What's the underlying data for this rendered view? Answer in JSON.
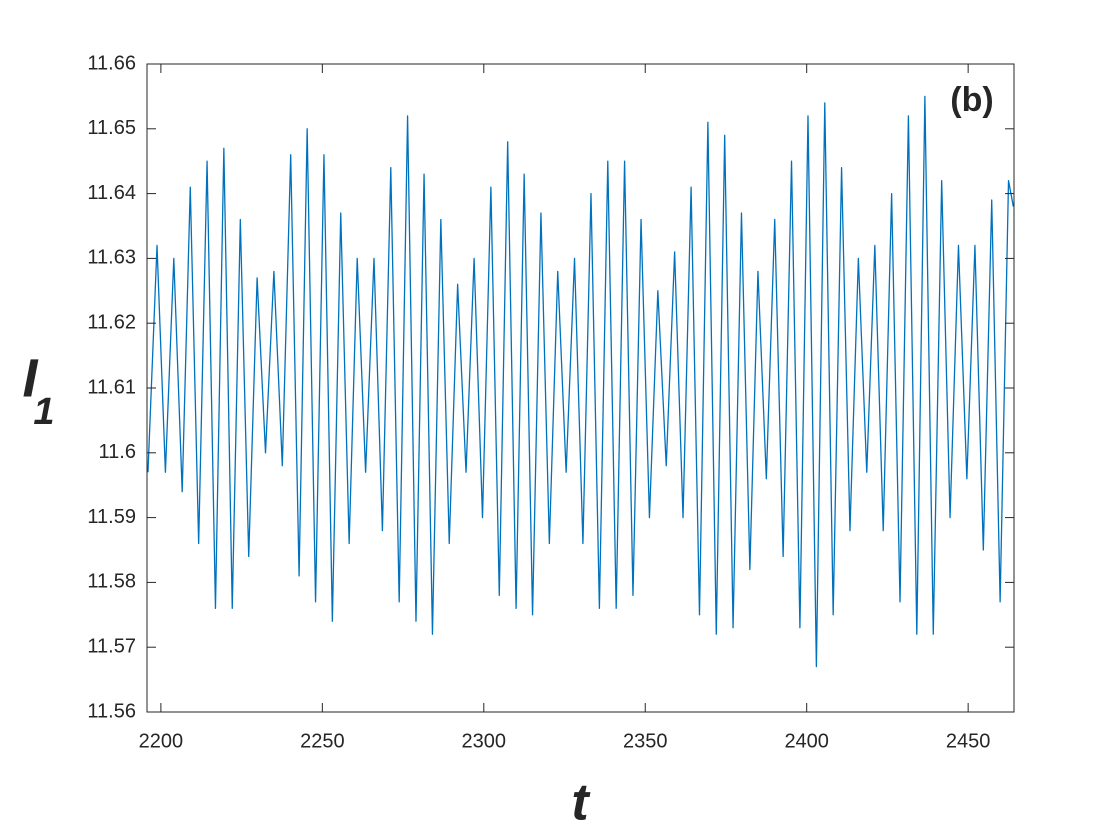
{
  "chart_data": {
    "type": "line",
    "annotation": "(b)",
    "xlabel": "t",
    "ylabel": {
      "text": "I",
      "subscript": "1"
    },
    "color": "#0072bd",
    "xlim": [
      2195.7,
      2464.2
    ],
    "ylim": [
      11.56,
      11.66
    ],
    "xticks": [
      2200,
      2250,
      2300,
      2350,
      2400,
      2450
    ],
    "yticks": [
      11.56,
      11.57,
      11.58,
      11.59,
      11.6,
      11.61,
      11.62,
      11.63,
      11.64,
      11.65,
      11.66
    ],
    "x": [
      2196.0,
      2198.8,
      2201.4,
      2204.0,
      2206.6,
      2209.1,
      2211.7,
      2214.3,
      2216.9,
      2219.5,
      2222.1,
      2224.6,
      2227.2,
      2229.8,
      2232.4,
      2235.0,
      2237.6,
      2240.2,
      2242.8,
      2245.3,
      2247.9,
      2250.5,
      2253.1,
      2255.7,
      2258.3,
      2260.8,
      2263.4,
      2266.0,
      2268.6,
      2271.2,
      2273.8,
      2276.4,
      2279.0,
      2281.5,
      2284.1,
      2286.7,
      2289.3,
      2291.9,
      2294.5,
      2297.0,
      2299.6,
      2302.2,
      2304.8,
      2307.4,
      2310.0,
      2312.5,
      2315.1,
      2317.7,
      2320.3,
      2322.9,
      2325.5,
      2328.1,
      2330.7,
      2333.2,
      2335.8,
      2338.4,
      2341.0,
      2343.6,
      2346.2,
      2348.7,
      2351.3,
      2353.9,
      2356.5,
      2359.1,
      2361.7,
      2364.2,
      2366.8,
      2369.4,
      2372.0,
      2374.6,
      2377.2,
      2379.8,
      2382.4,
      2384.9,
      2387.5,
      2390.1,
      2392.7,
      2395.3,
      2397.9,
      2400.4,
      2403.0,
      2405.6,
      2408.2,
      2410.8,
      2413.4,
      2416.0,
      2418.6,
      2421.1,
      2423.7,
      2426.3,
      2428.9,
      2431.5,
      2434.1,
      2436.6,
      2439.2,
      2441.8,
      2444.4,
      2447.0,
      2449.6,
      2452.1,
      2454.7,
      2457.3,
      2459.9,
      2462.5,
      2464.0
    ],
    "values": [
      11.597,
      11.632,
      11.597,
      11.63,
      11.594,
      11.641,
      11.586,
      11.645,
      11.576,
      11.647,
      11.576,
      11.636,
      11.584,
      11.627,
      11.6,
      11.628,
      11.598,
      11.646,
      11.581,
      11.65,
      11.577,
      11.646,
      11.574,
      11.637,
      11.586,
      11.63,
      11.597,
      11.63,
      11.588,
      11.644,
      11.577,
      11.652,
      11.574,
      11.643,
      11.572,
      11.636,
      11.586,
      11.626,
      11.597,
      11.63,
      11.59,
      11.641,
      11.578,
      11.648,
      11.576,
      11.643,
      11.575,
      11.637,
      11.586,
      11.628,
      11.597,
      11.63,
      11.586,
      11.64,
      11.576,
      11.645,
      11.576,
      11.645,
      11.578,
      11.636,
      11.59,
      11.625,
      11.598,
      11.631,
      11.59,
      11.641,
      11.575,
      11.651,
      11.572,
      11.649,
      11.573,
      11.637,
      11.582,
      11.628,
      11.596,
      11.636,
      11.584,
      11.645,
      11.573,
      11.652,
      11.567,
      11.654,
      11.575,
      11.644,
      11.588,
      11.63,
      11.597,
      11.632,
      11.588,
      11.64,
      11.577,
      11.652,
      11.572,
      11.655,
      11.572,
      11.642,
      11.59,
      11.632,
      11.596,
      11.632,
      11.585,
      11.639,
      11.577,
      11.642,
      11.638
    ]
  }
}
